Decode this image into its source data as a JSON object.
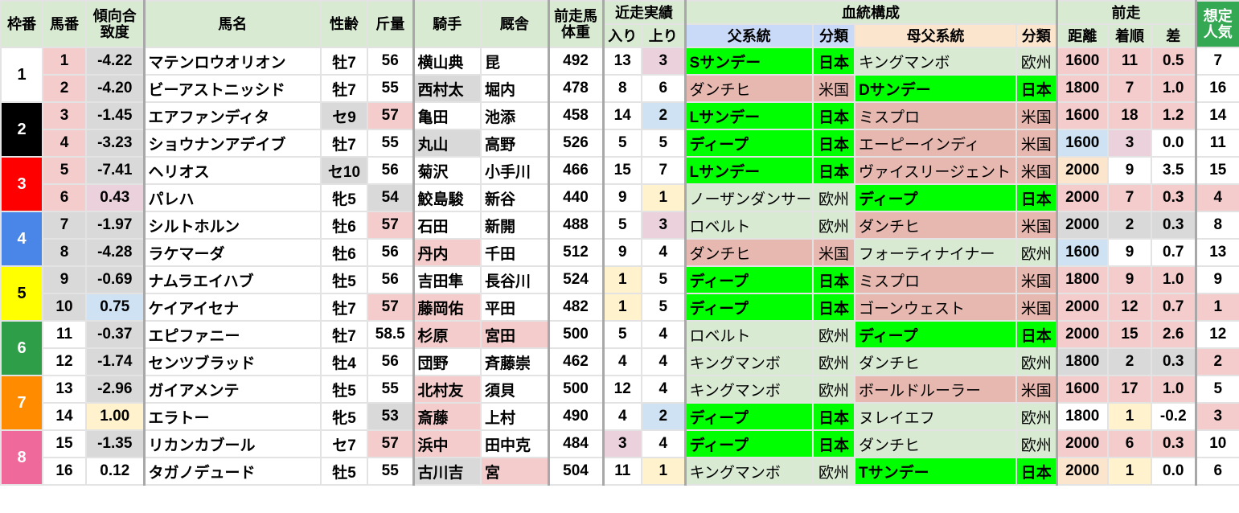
{
  "header": {
    "frame": "枠番",
    "umaban": "馬番",
    "keiko": "傾向合致度",
    "name": "馬名",
    "sexage": "性齢",
    "kinryo": "斤量",
    "jockey": "騎手",
    "trainer": "厩舎",
    "weight": "前走馬体重",
    "recent": "近走実績",
    "iri": "入り",
    "agari": "上り",
    "blood": "血統構成",
    "sire": "父系統",
    "sire_cls": "分類",
    "dam_sire": "母父系統",
    "dam_cls": "分類",
    "prev": "前走",
    "dist": "距離",
    "rank": "着順",
    "diff": "差",
    "popularity": "想定人気"
  },
  "colors": {
    "w": "#ffffff",
    "p": "#f4cccc",
    "g": "#d9d9d9",
    "u": "#ead1dc",
    "b": "#cfe2f3",
    "y": "#fff2cc",
    "o": "#fce5cd",
    "G": "#00ff00",
    "r": "#e6b8af",
    "l": "#d9ead3",
    "sire_header": "#c9daf8",
    "dam_header": "#fce5cd",
    "pop_header": "#34a853"
  },
  "frames": [
    {
      "label": "1",
      "bg": "#ffffff",
      "fg": "#000000"
    },
    {
      "label": "2",
      "bg": "#000000",
      "fg": "#ffffff"
    },
    {
      "label": "3",
      "bg": "#ff0000",
      "fg": "#ffffff"
    },
    {
      "label": "4",
      "bg": "#4a86e8",
      "fg": "#ffffff"
    },
    {
      "label": "5",
      "bg": "#ffff00",
      "fg": "#000000"
    },
    {
      "label": "6",
      "bg": "#2f9e48",
      "fg": "#ffffff"
    },
    {
      "label": "7",
      "bg": "#ff8c00",
      "fg": "#ffffff"
    },
    {
      "label": "8",
      "bg": "#f0699b",
      "fg": "#ffffff"
    }
  ],
  "rows": [
    [
      [
        "1",
        "p"
      ],
      [
        "-4.22",
        "g"
      ],
      [
        "マテンロウオリオン",
        "w"
      ],
      [
        "牡7",
        "w"
      ],
      [
        "56",
        "w"
      ],
      [
        "横山典",
        "w"
      ],
      [
        "昆",
        "w"
      ],
      [
        "492",
        "w"
      ],
      [
        "13",
        "w"
      ],
      [
        "3",
        "u"
      ],
      [
        "Sサンデー",
        "G"
      ],
      [
        "日本",
        "G"
      ],
      [
        "キングマンボ",
        "l"
      ],
      [
        "欧州",
        "l"
      ],
      [
        "1600",
        "p"
      ],
      [
        "11",
        "p"
      ],
      [
        "0.5",
        "p"
      ],
      [
        "7",
        "w"
      ]
    ],
    [
      [
        "2",
        "p"
      ],
      [
        "-4.20",
        "g"
      ],
      [
        "ビーアストニッシド",
        "w"
      ],
      [
        "牡7",
        "w"
      ],
      [
        "55",
        "w"
      ],
      [
        "西村太",
        "g"
      ],
      [
        "堀内",
        "w"
      ],
      [
        "478",
        "w"
      ],
      [
        "8",
        "w"
      ],
      [
        "6",
        "w"
      ],
      [
        "ダンチヒ",
        "r"
      ],
      [
        "米国",
        "r"
      ],
      [
        "Dサンデー",
        "G"
      ],
      [
        "日本",
        "G"
      ],
      [
        "1800",
        "p"
      ],
      [
        "7",
        "p"
      ],
      [
        "1.0",
        "p"
      ],
      [
        "16",
        "w"
      ]
    ],
    [
      [
        "3",
        "p"
      ],
      [
        "-1.45",
        "g"
      ],
      [
        "エアファンディタ",
        "w"
      ],
      [
        "セ9",
        "g"
      ],
      [
        "57",
        "p"
      ],
      [
        "亀田",
        "w"
      ],
      [
        "池添",
        "w"
      ],
      [
        "458",
        "w"
      ],
      [
        "14",
        "w"
      ],
      [
        "2",
        "b"
      ],
      [
        "Lサンデー",
        "G"
      ],
      [
        "日本",
        "G"
      ],
      [
        "ミスプロ",
        "r"
      ],
      [
        "米国",
        "r"
      ],
      [
        "1600",
        "p"
      ],
      [
        "18",
        "p"
      ],
      [
        "1.2",
        "p"
      ],
      [
        "14",
        "w"
      ]
    ],
    [
      [
        "4",
        "p"
      ],
      [
        "-3.23",
        "g"
      ],
      [
        "ショウナンアデイブ",
        "w"
      ],
      [
        "牡7",
        "w"
      ],
      [
        "55",
        "w"
      ],
      [
        "丸山",
        "g"
      ],
      [
        "高野",
        "w"
      ],
      [
        "526",
        "w"
      ],
      [
        "5",
        "w"
      ],
      [
        "5",
        "w"
      ],
      [
        "ディープ",
        "G"
      ],
      [
        "日本",
        "G"
      ],
      [
        "エーピーインディ",
        "r"
      ],
      [
        "米国",
        "r"
      ],
      [
        "1600",
        "b"
      ],
      [
        "3",
        "u"
      ],
      [
        "0.0",
        "w"
      ],
      [
        "11",
        "w"
      ]
    ],
    [
      [
        "5",
        "p"
      ],
      [
        "-7.41",
        "g"
      ],
      [
        "ヘリオス",
        "w"
      ],
      [
        "セ10",
        "g"
      ],
      [
        "56",
        "w"
      ],
      [
        "菊沢",
        "w"
      ],
      [
        "小手川",
        "w"
      ],
      [
        "466",
        "w"
      ],
      [
        "15",
        "w"
      ],
      [
        "7",
        "w"
      ],
      [
        "Lサンデー",
        "G"
      ],
      [
        "日本",
        "G"
      ],
      [
        "ヴァイスリージェント",
        "r"
      ],
      [
        "米国",
        "r"
      ],
      [
        "2000",
        "o"
      ],
      [
        "9",
        "w"
      ],
      [
        "3.5",
        "w"
      ],
      [
        "15",
        "w"
      ]
    ],
    [
      [
        "6",
        "p"
      ],
      [
        "0.43",
        "u"
      ],
      [
        "パレハ",
        "w"
      ],
      [
        "牝5",
        "w"
      ],
      [
        "54",
        "g"
      ],
      [
        "鮫島駿",
        "w"
      ],
      [
        "新谷",
        "w"
      ],
      [
        "440",
        "w"
      ],
      [
        "9",
        "w"
      ],
      [
        "1",
        "y"
      ],
      [
        "ノーザンダンサー",
        "l"
      ],
      [
        "欧州",
        "l"
      ],
      [
        "ディープ",
        "G"
      ],
      [
        "日本",
        "G"
      ],
      [
        "2000",
        "p"
      ],
      [
        "7",
        "p"
      ],
      [
        "0.3",
        "p"
      ],
      [
        "4",
        "p"
      ]
    ],
    [
      [
        "7",
        "g"
      ],
      [
        "-1.97",
        "g"
      ],
      [
        "シルトホルン",
        "w"
      ],
      [
        "牡6",
        "w"
      ],
      [
        "57",
        "p"
      ],
      [
        "石田",
        "w"
      ],
      [
        "新開",
        "w"
      ],
      [
        "488",
        "w"
      ],
      [
        "5",
        "w"
      ],
      [
        "3",
        "u"
      ],
      [
        "ロベルト",
        "l"
      ],
      [
        "欧州",
        "l"
      ],
      [
        "ダンチヒ",
        "r"
      ],
      [
        "米国",
        "r"
      ],
      [
        "2000",
        "g"
      ],
      [
        "2",
        "g"
      ],
      [
        "0.3",
        "g"
      ],
      [
        "8",
        "w"
      ]
    ],
    [
      [
        "8",
        "g"
      ],
      [
        "-4.28",
        "g"
      ],
      [
        "ラケマーダ",
        "w"
      ],
      [
        "牡6",
        "w"
      ],
      [
        "56",
        "w"
      ],
      [
        "丹内",
        "p"
      ],
      [
        "千田",
        "w"
      ],
      [
        "512",
        "w"
      ],
      [
        "9",
        "w"
      ],
      [
        "4",
        "w"
      ],
      [
        "ダンチヒ",
        "r"
      ],
      [
        "米国",
        "r"
      ],
      [
        "フォーティナイナー",
        "l"
      ],
      [
        "欧州",
        "l"
      ],
      [
        "1600",
        "b"
      ],
      [
        "9",
        "w"
      ],
      [
        "0.7",
        "w"
      ],
      [
        "13",
        "w"
      ]
    ],
    [
      [
        "9",
        "g"
      ],
      [
        "-0.69",
        "g"
      ],
      [
        "ナムラエイハブ",
        "w"
      ],
      [
        "牡5",
        "w"
      ],
      [
        "56",
        "w"
      ],
      [
        "吉田隼",
        "w"
      ],
      [
        "長谷川",
        "w"
      ],
      [
        "524",
        "w"
      ],
      [
        "1",
        "y"
      ],
      [
        "5",
        "w"
      ],
      [
        "ディープ",
        "G"
      ],
      [
        "日本",
        "G"
      ],
      [
        "ミスプロ",
        "r"
      ],
      [
        "米国",
        "r"
      ],
      [
        "1800",
        "p"
      ],
      [
        "9",
        "p"
      ],
      [
        "1.0",
        "p"
      ],
      [
        "9",
        "w"
      ]
    ],
    [
      [
        "10",
        "g"
      ],
      [
        "0.75",
        "b"
      ],
      [
        "ケイアイセナ",
        "w"
      ],
      [
        "牡7",
        "w"
      ],
      [
        "57",
        "p"
      ],
      [
        "藤岡佑",
        "p"
      ],
      [
        "平田",
        "w"
      ],
      [
        "482",
        "w"
      ],
      [
        "1",
        "y"
      ],
      [
        "5",
        "w"
      ],
      [
        "ディープ",
        "G"
      ],
      [
        "日本",
        "G"
      ],
      [
        "ゴーンウェスト",
        "r"
      ],
      [
        "米国",
        "r"
      ],
      [
        "2000",
        "p"
      ],
      [
        "12",
        "p"
      ],
      [
        "0.7",
        "p"
      ],
      [
        "1",
        "p"
      ]
    ],
    [
      [
        "11",
        "w"
      ],
      [
        "-0.37",
        "g"
      ],
      [
        "エピファニー",
        "w"
      ],
      [
        "牡7",
        "w"
      ],
      [
        "58.5",
        "w"
      ],
      [
        "杉原",
        "p"
      ],
      [
        "宮田",
        "p"
      ],
      [
        "500",
        "w"
      ],
      [
        "5",
        "w"
      ],
      [
        "4",
        "w"
      ],
      [
        "ロベルト",
        "l"
      ],
      [
        "欧州",
        "l"
      ],
      [
        "ディープ",
        "G"
      ],
      [
        "日本",
        "G"
      ],
      [
        "2000",
        "p"
      ],
      [
        "15",
        "p"
      ],
      [
        "2.6",
        "p"
      ],
      [
        "12",
        "w"
      ]
    ],
    [
      [
        "12",
        "w"
      ],
      [
        "-1.74",
        "g"
      ],
      [
        "センツブラッド",
        "w"
      ],
      [
        "牡4",
        "w"
      ],
      [
        "56",
        "w"
      ],
      [
        "団野",
        "w"
      ],
      [
        "斉藤崇",
        "w"
      ],
      [
        "462",
        "w"
      ],
      [
        "4",
        "w"
      ],
      [
        "4",
        "w"
      ],
      [
        "キングマンボ",
        "l"
      ],
      [
        "欧州",
        "l"
      ],
      [
        "ダンチヒ",
        "l"
      ],
      [
        "欧州",
        "l"
      ],
      [
        "1800",
        "g"
      ],
      [
        "2",
        "g"
      ],
      [
        "0.3",
        "g"
      ],
      [
        "2",
        "p"
      ]
    ],
    [
      [
        "13",
        "w"
      ],
      [
        "-2.96",
        "g"
      ],
      [
        "ガイアメンテ",
        "w"
      ],
      [
        "牡5",
        "w"
      ],
      [
        "55",
        "w"
      ],
      [
        "北村友",
        "p"
      ],
      [
        "須貝",
        "w"
      ],
      [
        "500",
        "w"
      ],
      [
        "12",
        "w"
      ],
      [
        "4",
        "w"
      ],
      [
        "キングマンボ",
        "l"
      ],
      [
        "欧州",
        "l"
      ],
      [
        "ボールドルーラー",
        "r"
      ],
      [
        "米国",
        "r"
      ],
      [
        "1600",
        "p"
      ],
      [
        "17",
        "p"
      ],
      [
        "1.0",
        "p"
      ],
      [
        "5",
        "w"
      ]
    ],
    [
      [
        "14",
        "w"
      ],
      [
        "1.00",
        "y"
      ],
      [
        "エラトー",
        "w"
      ],
      [
        "牝5",
        "w"
      ],
      [
        "53",
        "g"
      ],
      [
        "斎藤",
        "p"
      ],
      [
        "上村",
        "w"
      ],
      [
        "490",
        "w"
      ],
      [
        "4",
        "w"
      ],
      [
        "2",
        "b"
      ],
      [
        "ディープ",
        "G"
      ],
      [
        "日本",
        "G"
      ],
      [
        "ヌレイエフ",
        "l"
      ],
      [
        "欧州",
        "l"
      ],
      [
        "1800",
        "w"
      ],
      [
        "1",
        "y"
      ],
      [
        "-0.2",
        "w"
      ],
      [
        "3",
        "p"
      ]
    ],
    [
      [
        "15",
        "w"
      ],
      [
        "-1.35",
        "g"
      ],
      [
        "リカンカブール",
        "w"
      ],
      [
        "セ7",
        "w"
      ],
      [
        "57",
        "p"
      ],
      [
        "浜中",
        "p"
      ],
      [
        "田中克",
        "w"
      ],
      [
        "484",
        "w"
      ],
      [
        "3",
        "u"
      ],
      [
        "4",
        "w"
      ],
      [
        "ディープ",
        "G"
      ],
      [
        "日本",
        "G"
      ],
      [
        "ダンチヒ",
        "l"
      ],
      [
        "欧州",
        "l"
      ],
      [
        "2000",
        "p"
      ],
      [
        "6",
        "p"
      ],
      [
        "0.3",
        "p"
      ],
      [
        "10",
        "w"
      ]
    ],
    [
      [
        "16",
        "w"
      ],
      [
        "0.12",
        "w"
      ],
      [
        "タガノデュード",
        "w"
      ],
      [
        "牡5",
        "w"
      ],
      [
        "55",
        "w"
      ],
      [
        "古川吉",
        "g"
      ],
      [
        "宮",
        "p"
      ],
      [
        "504",
        "w"
      ],
      [
        "11",
        "w"
      ],
      [
        "1",
        "y"
      ],
      [
        "キングマンボ",
        "l"
      ],
      [
        "欧州",
        "l"
      ],
      [
        "Tサンデー",
        "G"
      ],
      [
        "日本",
        "G"
      ],
      [
        "2000",
        "o"
      ],
      [
        "1",
        "y"
      ],
      [
        "0.0",
        "w"
      ],
      [
        "6",
        "w"
      ]
    ]
  ]
}
